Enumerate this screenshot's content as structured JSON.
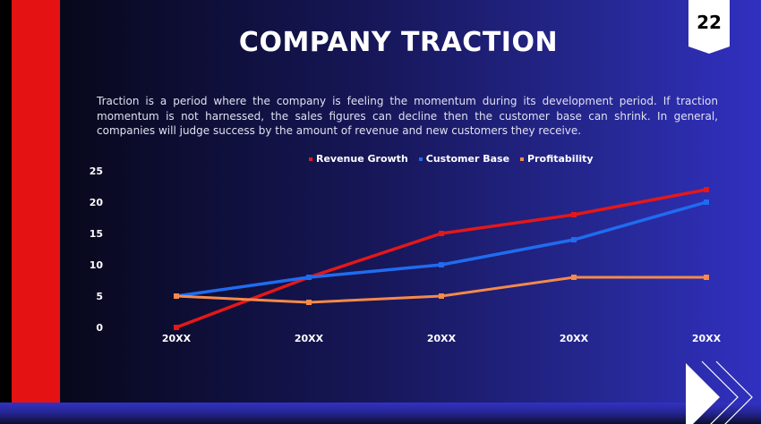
{
  "slide": {
    "title": "COMPANY TRACTION",
    "page_number": "22",
    "description": "Traction is a period where the company is feeling the momentum during its development period. If traction momentum is not harnessed, the sales figures can decline then the customer base can shrink. In general, companies will judge success by the amount of revenue and new customers they receive.",
    "colors": {
      "accent_red": "#e41212",
      "background_dark": "#05050f",
      "background_blue": "#3030c0"
    }
  },
  "chart_data": {
    "type": "line",
    "title": "",
    "xlabel": "",
    "ylabel": "",
    "categories": [
      "20XX",
      "20XX",
      "20XX",
      "20XX",
      "20XX"
    ],
    "ylim": [
      0,
      25
    ],
    "yticks": [
      "0",
      "5",
      "10",
      "15",
      "20",
      "25"
    ],
    "grid": false,
    "legend_position": "top",
    "series": [
      {
        "name": "Revenue Growth",
        "color": "#e41818",
        "values": [
          0,
          8,
          15,
          18,
          22
        ]
      },
      {
        "name": "Customer Base",
        "color": "#1f6cf0",
        "values": [
          5,
          8,
          10,
          14,
          20
        ]
      },
      {
        "name": "Profitability",
        "color": "#f58a4a",
        "values": [
          5,
          4,
          5,
          8,
          8
        ]
      }
    ]
  }
}
